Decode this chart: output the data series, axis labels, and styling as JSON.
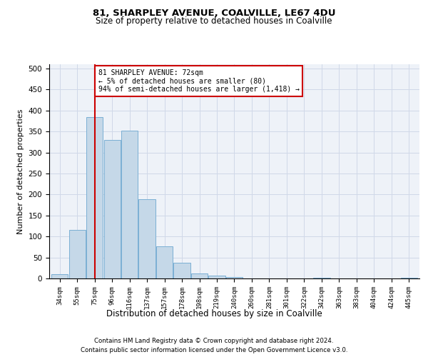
{
  "title": "81, SHARPLEY AVENUE, COALVILLE, LE67 4DU",
  "subtitle": "Size of property relative to detached houses in Coalville",
  "xlabel": "Distribution of detached houses by size in Coalville",
  "ylabel": "Number of detached properties",
  "bar_color": "#c5d8e8",
  "bar_edge_color": "#7bafd4",
  "grid_color": "#d0d8e8",
  "background_color": "#eef2f8",
  "annotation_box_color": "#cc0000",
  "vline_color": "#cc0000",
  "categories": [
    "34sqm",
    "55sqm",
    "75sqm",
    "96sqm",
    "116sqm",
    "137sqm",
    "157sqm",
    "178sqm",
    "198sqm",
    "219sqm",
    "240sqm",
    "260sqm",
    "281sqm",
    "301sqm",
    "322sqm",
    "342sqm",
    "363sqm",
    "383sqm",
    "404sqm",
    "424sqm",
    "445sqm"
  ],
  "values": [
    10,
    115,
    385,
    330,
    352,
    188,
    76,
    37,
    12,
    7,
    4,
    0,
    0,
    0,
    0,
    2,
    0,
    0,
    0,
    0,
    2
  ],
  "ylim": [
    0,
    510
  ],
  "yticks": [
    0,
    50,
    100,
    150,
    200,
    250,
    300,
    350,
    400,
    450,
    500
  ],
  "vline_position": 2,
  "annotation_text": "81 SHARPLEY AVENUE: 72sqm\n← 5% of detached houses are smaller (80)\n94% of semi-detached houses are larger (1,418) →",
  "footnote1": "Contains HM Land Registry data © Crown copyright and database right 2024.",
  "footnote2": "Contains public sector information licensed under the Open Government Licence v3.0."
}
